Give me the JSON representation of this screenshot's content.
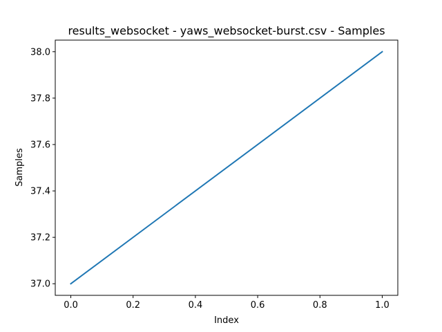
{
  "chart_data": {
    "type": "line",
    "title": "results_websocket - yaws_websocket-burst.csv - Samples",
    "xlabel": "Index",
    "ylabel": "Samples",
    "xlim": [
      -0.05,
      1.05
    ],
    "ylim": [
      36.95,
      38.05
    ],
    "xticks": [
      0.0,
      0.2,
      0.4,
      0.6,
      0.8,
      1.0
    ],
    "xtick_labels": [
      "0.0",
      "0.2",
      "0.4",
      "0.6",
      "0.8",
      "1.0"
    ],
    "yticks": [
      37.0,
      37.2,
      37.4,
      37.6,
      37.8,
      38.0
    ],
    "ytick_labels": [
      "37.0",
      "37.2",
      "37.4",
      "37.6",
      "37.8",
      "38.0"
    ],
    "grid": false,
    "series": [
      {
        "x": [
          0,
          1
        ],
        "values": [
          37.0,
          38.0
        ],
        "color": "#1f77b4"
      }
    ]
  }
}
